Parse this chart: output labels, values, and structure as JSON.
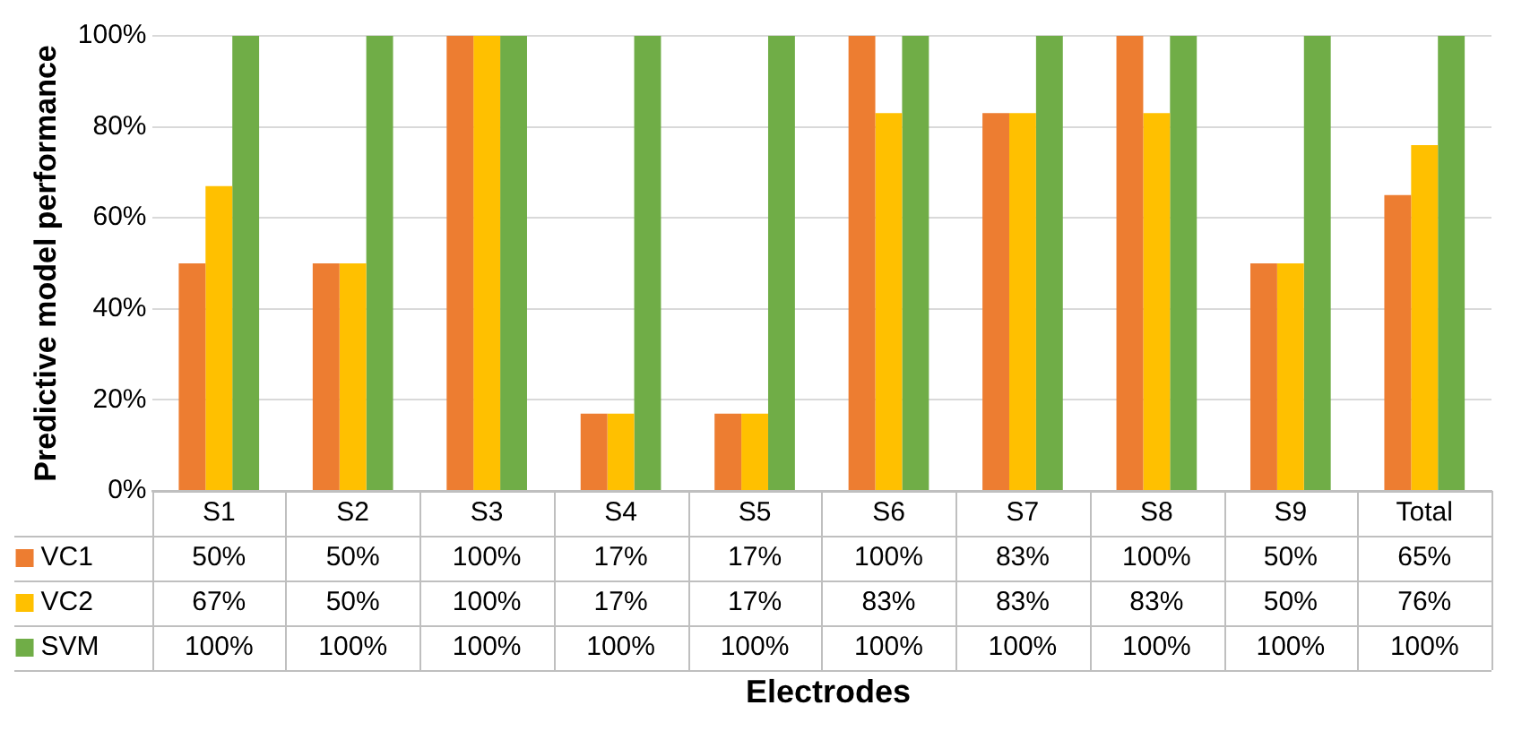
{
  "chart_data": {
    "type": "bar",
    "ylabel": "Predictive model performance",
    "xlabel": "Electrodes",
    "categories": [
      "S1",
      "S2",
      "S3",
      "S4",
      "S5",
      "S6",
      "S7",
      "S8",
      "S9",
      "Total"
    ],
    "series": [
      {
        "name": "VC1",
        "color": "#ed7d31",
        "values": [
          50,
          50,
          100,
          17,
          17,
          100,
          83,
          100,
          50,
          65
        ],
        "value_labels": [
          "50%",
          "50%",
          "100%",
          "17%",
          "17%",
          "100%",
          "83%",
          "100%",
          "50%",
          "65%"
        ]
      },
      {
        "name": "VC2",
        "color": "#ffc000",
        "values": [
          67,
          50,
          100,
          17,
          17,
          83,
          83,
          83,
          50,
          76
        ],
        "value_labels": [
          "67%",
          "50%",
          "100%",
          "17%",
          "17%",
          "83%",
          "83%",
          "83%",
          "50%",
          "76%"
        ]
      },
      {
        "name": "SVM",
        "color": "#70ad47",
        "values": [
          100,
          100,
          100,
          100,
          100,
          100,
          100,
          100,
          100,
          100
        ],
        "value_labels": [
          "100%",
          "100%",
          "100%",
          "100%",
          "100%",
          "100%",
          "100%",
          "100%",
          "100%",
          "100%"
        ]
      }
    ],
    "ylim": [
      0,
      100
    ],
    "yticks": [
      {
        "value": 0,
        "label": "0%"
      },
      {
        "value": 20,
        "label": "20%"
      },
      {
        "value": 40,
        "label": "40%"
      },
      {
        "value": 60,
        "label": "60%"
      },
      {
        "value": 80,
        "label": "80%"
      },
      {
        "value": 100,
        "label": "100%"
      }
    ],
    "grid": "y",
    "legend": "bottom"
  }
}
